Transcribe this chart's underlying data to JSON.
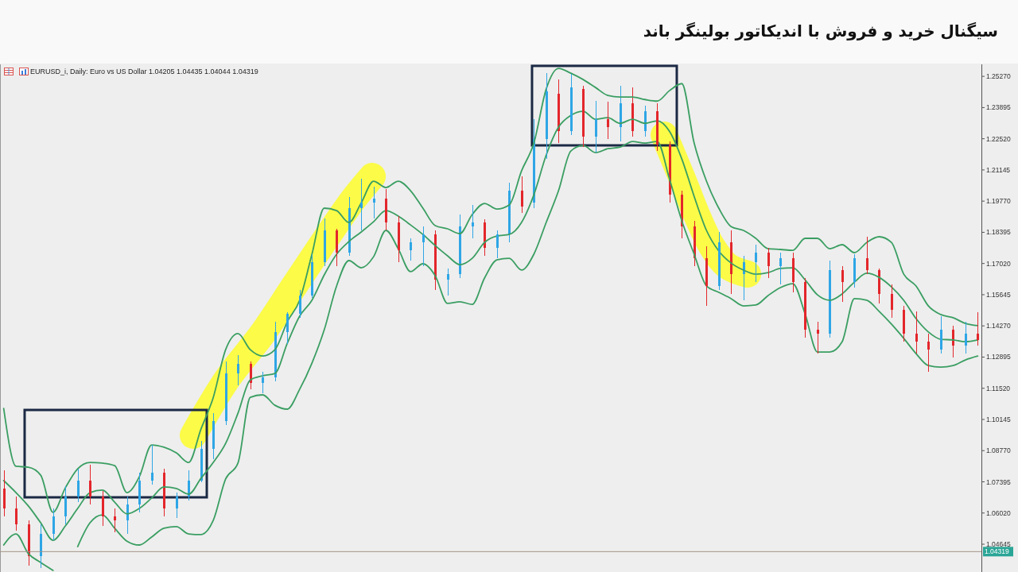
{
  "chart_data": {
    "type": "candlestick",
    "title": "سیگنال خرید و فروش با اندیکاتور بولینگر باند",
    "subtitle": "EURUSD_i, Daily: Euro vs US Dollar 1.04205 1.04435 1.04044 1.04319",
    "categories": [
      null,
      null,
      null,
      null,
      null,
      null,
      null,
      null,
      null,
      null,
      null,
      null,
      null,
      null,
      null,
      null,
      null,
      null,
      null,
      null,
      null,
      null,
      null,
      null,
      null,
      null,
      null,
      null,
      null,
      null,
      null,
      null,
      null,
      null,
      null,
      null,
      null,
      null,
      null,
      null,
      null,
      null,
      null,
      null,
      null,
      null,
      null,
      null,
      null,
      null,
      null,
      null,
      null,
      null,
      null,
      null,
      null,
      null,
      null,
      null,
      null,
      null,
      null,
      null,
      null,
      null,
      null,
      null,
      null,
      null,
      null,
      null,
      null,
      null,
      null,
      null,
      null,
      null,
      null,
      null
    ],
    "ohlc": [
      [
        1.071,
        1.079,
        1.0587,
        1.0622
      ],
      [
        1.0622,
        1.0675,
        1.0524,
        1.0552
      ],
      [
        1.0552,
        1.057,
        1.037,
        1.0412
      ],
      [
        1.0412,
        1.0552,
        1.036,
        1.051
      ],
      [
        1.051,
        1.0622,
        1.0482,
        1.0587
      ],
      [
        1.0587,
        1.072,
        1.0552,
        1.0675
      ],
      [
        1.0675,
        1.0797,
        1.065,
        1.0745
      ],
      [
        1.0745,
        1.0815,
        1.064,
        1.0675
      ],
      [
        1.0675,
        1.0699,
        1.0545,
        1.0587
      ],
      [
        1.0587,
        1.0622,
        1.0517,
        1.057
      ],
      [
        1.057,
        1.0675,
        1.051,
        1.064
      ],
      [
        1.064,
        1.078,
        1.0605,
        1.0745
      ],
      [
        1.0745,
        1.0902,
        1.0727,
        1.078
      ],
      [
        1.078,
        1.0797,
        1.0587,
        1.0622
      ],
      [
        1.0622,
        1.0692,
        1.058,
        1.0675
      ],
      [
        1.0675,
        1.079,
        1.0657,
        1.0745
      ],
      [
        1.0745,
        1.092,
        1.0738,
        1.0885
      ],
      [
        1.0885,
        1.1042,
        1.0839,
        1.1007
      ],
      [
        1.1007,
        1.127,
        1.099,
        1.1217
      ],
      [
        1.1217,
        1.1298,
        1.1165,
        1.126
      ],
      [
        1.126,
        1.127,
        1.1147,
        1.1175
      ],
      [
        1.1175,
        1.1224,
        1.113,
        1.12
      ],
      [
        1.12,
        1.1445,
        1.1182,
        1.14
      ],
      [
        1.14,
        1.1487,
        1.1347,
        1.148
      ],
      [
        1.148,
        1.1585,
        1.1463,
        1.1561
      ],
      [
        1.1561,
        1.1743,
        1.155,
        1.1708
      ],
      [
        1.1708,
        1.19,
        1.169,
        1.1848
      ],
      [
        1.1848,
        1.1855,
        1.169,
        1.175
      ],
      [
        1.175,
        1.1995,
        1.1736,
        1.1946
      ],
      [
        1.1946,
        1.2075,
        1.1848,
        1.197
      ],
      [
        1.197,
        1.204,
        1.19,
        1.1988
      ],
      [
        1.1988,
        1.203,
        1.1848,
        1.1883
      ],
      [
        1.1883,
        1.1911,
        1.1708,
        1.176
      ],
      [
        1.176,
        1.1813,
        1.1715,
        1.1795
      ],
      [
        1.1795,
        1.1865,
        1.169,
        1.183
      ],
      [
        1.183,
        1.1848,
        1.1585,
        1.163
      ],
      [
        1.163,
        1.168,
        1.1561,
        1.1655
      ],
      [
        1.1655,
        1.1918,
        1.1638,
        1.1865
      ],
      [
        1.1865,
        1.196,
        1.1813,
        1.1883
      ],
      [
        1.1883,
        1.1897,
        1.1736,
        1.1771
      ],
      [
        1.1771,
        1.1848,
        1.1725,
        1.183
      ],
      [
        1.183,
        1.2058,
        1.1795,
        1.2023
      ],
      [
        1.2023,
        1.2086,
        1.1925,
        1.1953
      ],
      [
        1.197,
        1.2338,
        1.1946,
        1.225
      ],
      [
        1.225,
        1.2541,
        1.2163,
        1.246
      ],
      [
        1.245,
        1.2513,
        1.2233,
        1.2285
      ],
      [
        1.2285,
        1.2537,
        1.2268,
        1.2478
      ],
      [
        1.2471,
        1.2485,
        1.2215,
        1.2261
      ],
      [
        1.2261,
        1.2418,
        1.2191,
        1.2338
      ],
      [
        1.2338,
        1.2415,
        1.225,
        1.2303
      ],
      [
        1.2303,
        1.2485,
        1.224,
        1.2408
      ],
      [
        1.2408,
        1.2478,
        1.2261,
        1.2285
      ],
      [
        1.2285,
        1.2397,
        1.2261,
        1.2373
      ],
      [
        1.2373,
        1.2408,
        1.2198,
        1.2226
      ],
      [
        1.2226,
        1.224,
        1.197,
        1.2005
      ],
      [
        1.2005,
        1.2023,
        1.1813,
        1.1865
      ],
      [
        1.1865,
        1.189,
        1.169,
        1.1725
      ],
      [
        1.1725,
        1.1778,
        1.1515,
        1.1603
      ],
      [
        1.1603,
        1.1841,
        1.1585,
        1.1795
      ],
      [
        1.1795,
        1.1848,
        1.1568,
        1.1655
      ],
      [
        1.1655,
        1.1736,
        1.154,
        1.1708
      ],
      [
        1.1708,
        1.1785,
        1.162,
        1.175
      ],
      [
        1.175,
        1.1771,
        1.1638,
        1.169
      ],
      [
        1.169,
        1.175,
        1.161,
        1.1725
      ],
      [
        1.1725,
        1.175,
        1.1575,
        1.162
      ],
      [
        1.162,
        1.1638,
        1.1375,
        1.141
      ],
      [
        1.141,
        1.1445,
        1.1305,
        1.1393
      ],
      [
        1.1393,
        1.1715,
        1.1375,
        1.1673
      ],
      [
        1.1673,
        1.169,
        1.1533,
        1.162
      ],
      [
        1.162,
        1.1743,
        1.1596,
        1.1725
      ],
      [
        1.1725,
        1.182,
        1.1655,
        1.1673
      ],
      [
        1.1673,
        1.168,
        1.1526,
        1.1568
      ],
      [
        1.1568,
        1.161,
        1.1463,
        1.1498
      ],
      [
        1.1498,
        1.1515,
        1.1357,
        1.1393
      ],
      [
        1.1393,
        1.1491,
        1.1305,
        1.1357
      ],
      [
        1.1357,
        1.1393,
        1.1224,
        1.1322
      ],
      [
        1.1322,
        1.147,
        1.1305,
        1.141
      ],
      [
        1.141,
        1.1428,
        1.1287,
        1.134
      ],
      [
        1.134,
        1.1445,
        1.1305,
        1.1393
      ],
      [
        1.1393,
        1.1487,
        1.134,
        1.1365
      ]
    ],
    "colors": [
      "#e3262b",
      "#e3262b",
      "#e3262b",
      "#2ea6e6",
      "#2ea6e6",
      "#2ea6e6",
      "#2ea6e6",
      "#e3262b",
      "#e3262b",
      "#e3262b",
      "#2ea6e6",
      "#2ea6e6",
      "#2ea6e6",
      "#e3262b",
      "#2ea6e6",
      "#2ea6e6",
      "#2ea6e6",
      "#2ea6e6",
      "#2ea6e6",
      "#2ea6e6",
      "#e3262b",
      "#2ea6e6",
      "#2ea6e6",
      "#2ea6e6",
      "#2ea6e6",
      "#2ea6e6",
      "#2ea6e6",
      "#e3262b",
      "#2ea6e6",
      "#2ea6e6",
      "#2ea6e6",
      "#e3262b",
      "#e3262b",
      "#2ea6e6",
      "#2ea6e6",
      "#e3262b",
      "#2ea6e6",
      "#2ea6e6",
      "#2ea6e6",
      "#e3262b",
      "#2ea6e6",
      "#2ea6e6",
      "#e3262b",
      "#2ea6e6",
      "#2ea6e6",
      "#e3262b",
      "#2ea6e6",
      "#e3262b",
      "#2ea6e6",
      "#e3262b",
      "#2ea6e6",
      "#e3262b",
      "#2ea6e6",
      "#e3262b",
      "#e3262b",
      "#e3262b",
      "#e3262b",
      "#e3262b",
      "#2ea6e6",
      "#e3262b",
      "#2ea6e6",
      "#2ea6e6",
      "#e3262b",
      "#2ea6e6",
      "#e3262b",
      "#e3262b",
      "#e3262b",
      "#2ea6e6",
      "#e3262b",
      "#2ea6e6",
      "#e3262b",
      "#e3262b",
      "#e3262b",
      "#e3262b",
      "#e3262b",
      "#e3262b",
      "#2ea6e6",
      "#e3262b",
      "#2ea6e6",
      "#e3262b"
    ],
    "series": [
      {
        "type": "line",
        "color": "#3a9e62",
        "values": [
          1.1063,
          1.0808,
          1.0804,
          1.0769,
          1.0605,
          1.0713,
          1.0797,
          1.0825,
          1.0822,
          1.0811,
          1.0692,
          1.0762,
          1.0902,
          1.0892,
          1.0867,
          1.0825,
          1.0972,
          1.1112,
          1.1322,
          1.1393,
          1.1322,
          1.1294,
          1.1322,
          1.1445,
          1.154,
          1.1743,
          1.1946,
          1.1935,
          1.1883,
          1.197,
          1.2065,
          1.2037,
          1.2065,
          1.2023,
          1.1946,
          1.1869,
          1.1855,
          1.1834,
          1.1918,
          1.1967,
          1.1942,
          1.196,
          1.211,
          1.2233,
          1.2471,
          1.2562,
          1.2541,
          1.2513,
          1.2478,
          1.2443,
          1.2436,
          1.2436,
          1.2425,
          1.2418,
          1.2464,
          1.2495,
          1.2233,
          1.2065,
          1.1946,
          1.1865,
          1.1848,
          1.1813,
          1.1767,
          1.1764,
          1.176,
          1.1813,
          1.1813,
          1.1767,
          1.1785,
          1.175,
          1.1795,
          1.182,
          1.1795,
          1.1655,
          1.1603,
          1.1515,
          1.1477,
          1.1463,
          1.1438,
          1.1428
        ]
      },
      {
        "type": "line",
        "color": "#3a9e62",
        "values": [
          1.0745,
          1.0692,
          1.0633,
          1.0559,
          1.0482,
          1.0545,
          1.0622,
          1.0692,
          1.0703,
          1.065,
          1.0598,
          1.0622,
          1.0668,
          1.0717,
          1.071,
          1.0685,
          1.0755,
          1.0825,
          1.0909,
          1.1042,
          1.1189,
          1.1207,
          1.1217,
          1.135,
          1.147,
          1.154,
          1.1652,
          1.1743,
          1.1799,
          1.1841,
          1.1886,
          1.1935,
          1.1911,
          1.1872,
          1.183,
          1.1781,
          1.1736,
          1.1697,
          1.1725,
          1.1795,
          1.1823,
          1.183,
          1.1883,
          1.2005,
          1.218,
          1.2303,
          1.2355,
          1.2373,
          1.2338,
          1.2345,
          1.232,
          1.2338,
          1.232,
          1.2331,
          1.2285,
          1.2163,
          1.1998,
          1.1848,
          1.1757,
          1.1704,
          1.1673,
          1.1655,
          1.1662,
          1.168,
          1.1683,
          1.163,
          1.1564,
          1.154,
          1.1568,
          1.162,
          1.1659,
          1.1641,
          1.1599,
          1.154,
          1.1459,
          1.14,
          1.1368,
          1.1365,
          1.1357,
          1.1365
        ]
      },
      {
        "type": "line",
        "color": "#3a9e62",
        "values": [
          1.0461,
          1.051,
          1.0423,
          1.0384,
          1.0349,
          null,
          1.0454,
          1.0559,
          1.0594,
          1.0535,
          1.0478,
          1.0461,
          1.0496,
          1.0535,
          1.0542,
          1.051,
          1.0507,
          1.057,
          1.0752,
          1.0822,
          1.1112,
          1.1123,
          1.1077,
          1.106,
          1.1147,
          1.1263,
          1.141,
          1.1603,
          1.1715,
          1.1683,
          1.1732,
          1.1848,
          1.1767,
          1.1666,
          1.1701,
          1.1648,
          1.1526,
          1.1533,
          1.1522,
          1.1638,
          1.1718,
          1.1725,
          1.1673,
          1.1743,
          1.1883,
          1.2023,
          1.2198,
          1.2222,
          1.2191,
          1.2208,
          1.2215,
          1.224,
          1.2233,
          1.224,
          1.2075,
          1.189,
          1.1743,
          1.1603,
          1.1575,
          1.1547,
          1.1515,
          1.1519,
          1.1561,
          1.1596,
          1.1613,
          1.148,
          1.1312,
          1.1312,
          1.1357,
          1.1547,
          1.154,
          1.1491,
          1.1435,
          1.1372,
          1.1305,
          1.1252,
          1.1245,
          1.1252,
          1.1277,
          1.1294
        ]
      }
    ],
    "ylim": [
      1.0342,
      1.258
    ],
    "yticks": [
      {
        "value": 1.2527,
        "label": "1.25270"
      },
      1.23895,
      {
        "value": 1.2252,
        "label": "1.22520"
      },
      1.21145,
      {
        "value": 1.1977,
        "label": "1.19770"
      },
      1.18395,
      {
        "value": 1.1702,
        "label": "1.17020"
      },
      1.15645,
      {
        "value": 1.1427,
        "label": "1.14270"
      },
      1.12895,
      {
        "value": 1.1152,
        "label": "1.11520"
      },
      1.10145,
      {
        "value": 1.0877,
        "label": "1.08770"
      },
      1.07395,
      {
        "value": 1.0602,
        "label": "1.06020"
      },
      1.04645
    ],
    "ref_lines": [
      {
        "axis": "y",
        "value": 1.04319,
        "label": "1.04319",
        "color": "#a39488"
      }
    ],
    "tick_labels": "y"
  }
}
